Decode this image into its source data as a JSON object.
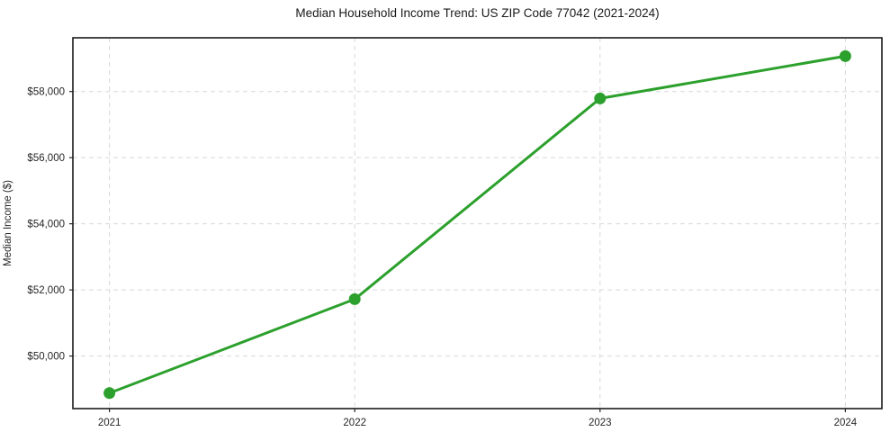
{
  "chart_data": {
    "type": "line",
    "title": "Median Household Income Trend: US ZIP Code 77042 (2021-2024)",
    "xlabel": "",
    "ylabel": "Median Income ($)",
    "x": [
      2021,
      2022,
      2023,
      2024
    ],
    "series": [
      {
        "name": "Median Household Income",
        "values": [
          48880,
          51720,
          57790,
          59070
        ]
      }
    ],
    "xticks": [
      2021,
      2022,
      2023,
      2024
    ],
    "xtick_labels": [
      "2021",
      "2022",
      "2023",
      "2024"
    ],
    "yticks": [
      50000,
      52000,
      54000,
      56000,
      58000
    ],
    "ytick_labels": [
      "$50,000",
      "$52,000",
      "$54,000",
      "$56,000",
      "$58,000"
    ],
    "xlim": [
      2020.851,
      2024.149
    ],
    "ylim": [
      48410,
      59625
    ],
    "grid": true,
    "grid_style": "dashed",
    "legend": null,
    "colors": {
      "line": "#2ca02c",
      "marker": "#2ca02c",
      "grid": "#d9d9d9",
      "axis_border": "#1a1a1a",
      "tick_text": "#262626",
      "title_text": "#1a1a1a",
      "background": "#ffffff"
    },
    "line_width": 3,
    "marker_radius": 6.5
  }
}
